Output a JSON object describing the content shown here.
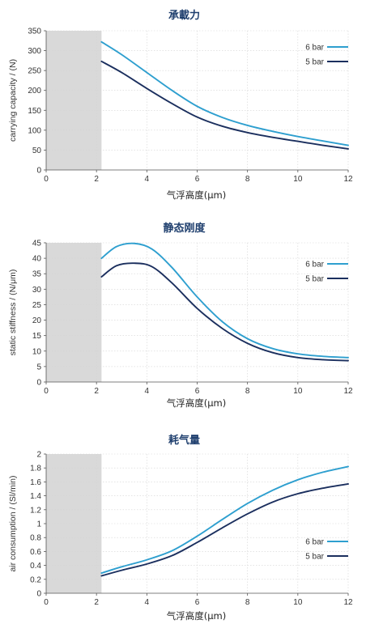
{
  "colors": {
    "series_6bar": "#2e9fcf",
    "series_5bar": "#1b2f5e",
    "shaded": "#d9d9d9",
    "title": "#1f3f6e"
  },
  "chart_data": [
    {
      "type": "line",
      "title": "承載力",
      "xlabel": "气浮高度(μm)",
      "ylabel": "carrying capacity / (N)",
      "xlim": [
        0,
        12
      ],
      "ylim": [
        0,
        350
      ],
      "xticks": [
        0,
        2,
        4,
        6,
        8,
        10,
        12
      ],
      "yticks": [
        0,
        50,
        100,
        150,
        200,
        250,
        300,
        350
      ],
      "shaded_region": [
        0,
        2.2
      ],
      "grid": true,
      "legend_position": "top-right",
      "series": [
        {
          "name": "6 bar",
          "color": "#2e9fcf",
          "x": [
            2.2,
            3,
            4,
            5,
            6,
            7,
            8,
            9,
            10,
            11,
            12
          ],
          "values": [
            322,
            290,
            245,
            200,
            160,
            132,
            112,
            97,
            84,
            73,
            62
          ]
        },
        {
          "name": "5 bar",
          "color": "#1b2f5e",
          "x": [
            2.2,
            3,
            4,
            5,
            6,
            7,
            8,
            9,
            10,
            11,
            12
          ],
          "values": [
            273,
            245,
            205,
            167,
            133,
            110,
            94,
            82,
            72,
            62,
            53
          ]
        }
      ]
    },
    {
      "type": "line",
      "title": "静态刚度",
      "xlabel": "气浮高度(μm)",
      "ylabel": "static stiffness / (N/μm)",
      "xlim": [
        0,
        12
      ],
      "ylim": [
        0,
        45
      ],
      "xticks": [
        0,
        2,
        4,
        6,
        8,
        10,
        12
      ],
      "yticks": [
        0,
        5,
        10,
        15,
        20,
        25,
        30,
        35,
        40,
        45
      ],
      "shaded_region": [
        0,
        2.2
      ],
      "grid": true,
      "legend_position": "top-right",
      "series": [
        {
          "name": "6 bar",
          "color": "#2e9fcf",
          "x": [
            2.2,
            2.8,
            3.5,
            4.2,
            5,
            6,
            7,
            8,
            9,
            10,
            11,
            12
          ],
          "values": [
            40,
            43.8,
            44.8,
            43,
            37,
            27.5,
            19.5,
            14,
            10.8,
            9.1,
            8.3,
            7.9
          ]
        },
        {
          "name": "5 bar",
          "color": "#1b2f5e",
          "x": [
            2.2,
            2.8,
            3.5,
            4.2,
            5,
            6,
            7,
            8,
            9,
            10,
            11,
            12
          ],
          "values": [
            34,
            37.6,
            38.4,
            37.3,
            32,
            23.8,
            17.3,
            12.5,
            9.5,
            7.9,
            7.2,
            6.9
          ]
        }
      ]
    },
    {
      "type": "line",
      "title": "耗气量",
      "xlabel": "气浮高度(μm)",
      "ylabel": "air consumption / (Sl/min)",
      "xlim": [
        0,
        12
      ],
      "ylim": [
        0,
        2
      ],
      "xticks": [
        0,
        2,
        4,
        6,
        8,
        10,
        12
      ],
      "yticks": [
        0,
        0.2,
        0.4,
        0.6,
        0.8,
        1,
        1.2,
        1.4,
        1.6,
        1.8,
        2
      ],
      "shaded_region": [
        0,
        2.2
      ],
      "grid": true,
      "legend_position": "bottom-right",
      "series": [
        {
          "name": "6 bar",
          "color": "#2e9fcf",
          "x": [
            2.2,
            3,
            4,
            5,
            6,
            7,
            8,
            9,
            10,
            11,
            12
          ],
          "values": [
            0.29,
            0.38,
            0.48,
            0.61,
            0.82,
            1.06,
            1.29,
            1.48,
            1.63,
            1.74,
            1.82
          ]
        },
        {
          "name": "5 bar",
          "color": "#1b2f5e",
          "x": [
            2.2,
            3,
            4,
            5,
            6,
            7,
            8,
            9,
            10,
            11,
            12
          ],
          "values": [
            0.25,
            0.33,
            0.42,
            0.54,
            0.73,
            0.94,
            1.14,
            1.31,
            1.43,
            1.51,
            1.57
          ]
        }
      ]
    }
  ]
}
